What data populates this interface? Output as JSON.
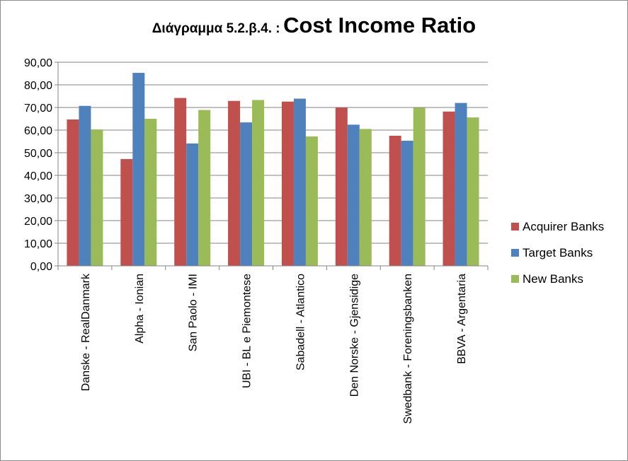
{
  "chart_data": {
    "type": "bar",
    "title_prefix": "Διάγραμμα 5.2.β.4. :",
    "title": "Cost Income Ratio",
    "xlabel": "",
    "ylabel": "",
    "ylim": [
      0,
      90
    ],
    "y_ticks": [
      0,
      10,
      20,
      30,
      40,
      50,
      60,
      70,
      80,
      90
    ],
    "y_tick_labels": [
      "0,00",
      "10,00",
      "20,00",
      "30,00",
      "40,00",
      "50,00",
      "60,00",
      "70,00",
      "80,00",
      "90,00"
    ],
    "grid": true,
    "legend_position": "right",
    "categories": [
      "Danske - RealDanmark",
      "Alpha - Ionian",
      "San Paolo - IMI",
      "UBI - BL e Piemontese",
      "Sabadell - Atlantico",
      "Den Norske - Gjensidige",
      "Swedbank - Foreningsbanken",
      "BBVA - Argentaria"
    ],
    "series": [
      {
        "name": "Acquirer Banks",
        "color": "#c0504d",
        "values": [
          64.7,
          47.2,
          74.2,
          72.9,
          72.6,
          69.9,
          57.5,
          68.2
        ]
      },
      {
        "name": "Target Banks",
        "color": "#4f81bd",
        "values": [
          70.7,
          85.3,
          54.1,
          63.4,
          73.9,
          62.4,
          55.3,
          72.0
        ]
      },
      {
        "name": "New Banks",
        "color": "#9bbb59",
        "values": [
          60.3,
          65.0,
          68.9,
          73.3,
          57.2,
          60.5,
          69.9,
          65.6
        ]
      }
    ]
  }
}
